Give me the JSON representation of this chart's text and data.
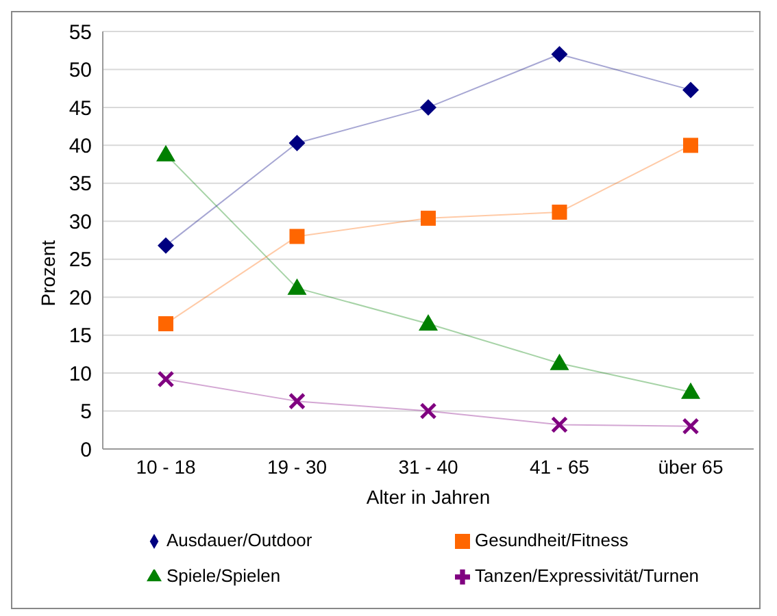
{
  "chart_data": {
    "type": "line",
    "xlabel": "Alter in Jahren",
    "ylabel": "Prozent",
    "categories": [
      "10 - 18",
      "19 - 30",
      "31 - 40",
      "41 - 65",
      "über 65"
    ],
    "series": [
      {
        "name": "Ausdauer/Outdoor",
        "color": "#000080",
        "marker": "diamond",
        "values": [
          26.8,
          40.3,
          45,
          52,
          47.3
        ]
      },
      {
        "name": "Spiele/Spielen",
        "color": "#008000",
        "marker": "triangle",
        "values": [
          38.8,
          21.2,
          16.5,
          11.3,
          7.5
        ]
      },
      {
        "name": "Gesundheit/Fitness",
        "color": "#ff6600",
        "marker": "square",
        "values": [
          16.5,
          28,
          30.4,
          31.2,
          40
        ]
      },
      {
        "name": "Tanzen/Expressivität/Turnen",
        "color": "#800080",
        "marker": "cross",
        "values": [
          9.2,
          6.3,
          5,
          3.2,
          3
        ]
      }
    ],
    "ylim": [
      0,
      55
    ],
    "yticks": [
      0,
      5,
      10,
      15,
      20,
      25,
      30,
      35,
      40,
      45,
      50,
      55
    ],
    "grid": "y",
    "legend": "bottom"
  }
}
